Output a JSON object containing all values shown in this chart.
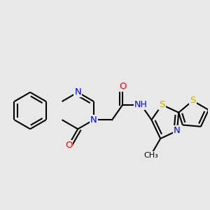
{
  "bg": "#e8e8e8",
  "bond_color": "#000000",
  "bond_lw": 1.5,
  "atom_colors": {
    "N": "#0000ee",
    "O": "#ff0000",
    "S": "#ccaa00"
  },
  "fs": 9.5,
  "dbo": 0.022
}
